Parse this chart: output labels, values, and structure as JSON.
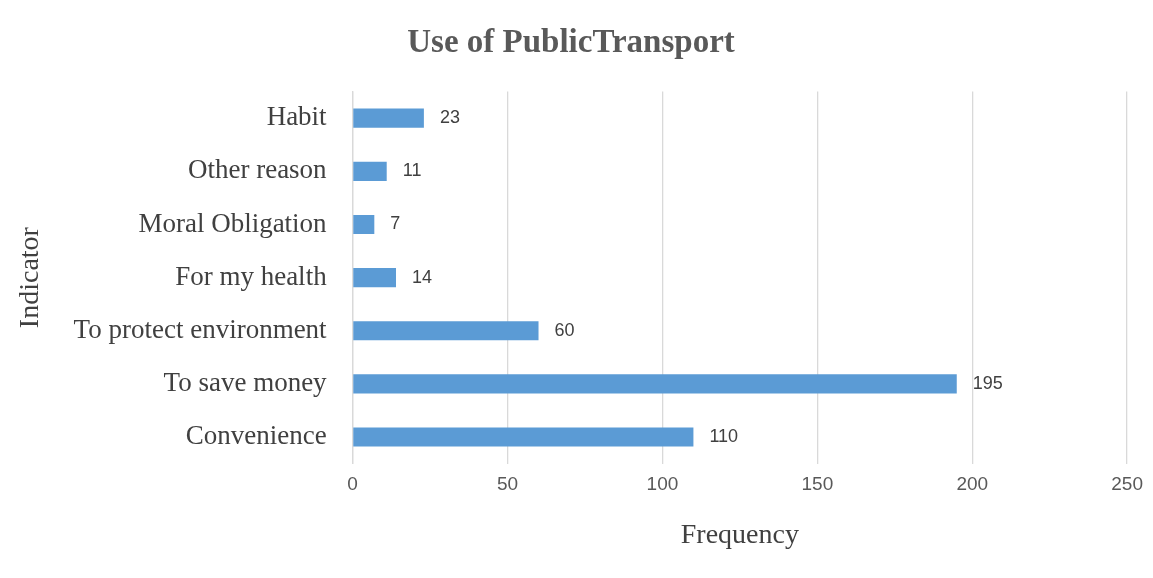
{
  "chart_data": {
    "type": "bar",
    "orientation": "horizontal",
    "title": "Use of PublicTransport",
    "xlabel": "Frequency",
    "ylabel": "Indicator",
    "categories": [
      "Habit",
      "Other reason",
      "Moral Obligation",
      "For my health",
      "To protect environment",
      "To save money",
      "Convenience"
    ],
    "values": [
      23,
      11,
      7,
      14,
      60,
      195,
      110
    ],
    "color": "#5b9bd5",
    "xlim": [
      0,
      250
    ],
    "xticks": [
      0,
      50,
      100,
      150,
      200,
      250
    ],
    "grid": "x",
    "data_labels": true
  }
}
